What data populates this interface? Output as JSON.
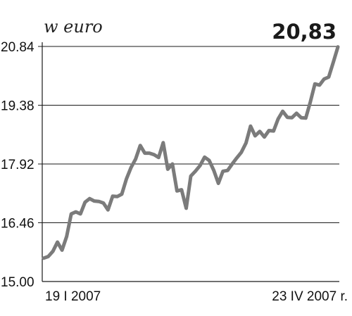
{
  "chart_data": {
    "type": "line",
    "unit_label": "w euro",
    "last_value_label": "20,83",
    "ylim": [
      15.0,
      20.84
    ],
    "y_ticks": [
      15.0,
      16.46,
      17.92,
      19.38,
      20.84
    ],
    "y_tick_labels": [
      "15.00",
      "16.46",
      "17.92",
      "19.38",
      "20.84"
    ],
    "x_start_label": "19 I 2007",
    "x_end_label": "23 IV 2007 r.",
    "grid": true,
    "series": [
      {
        "color": "#7b7b7b",
        "values": [
          15.58,
          15.62,
          15.75,
          15.98,
          15.78,
          16.12,
          16.68,
          16.73,
          16.68,
          16.97,
          17.06,
          17.0,
          16.99,
          16.95,
          16.78,
          17.12,
          17.11,
          17.17,
          17.55,
          17.83,
          18.04,
          18.38,
          18.19,
          18.19,
          18.15,
          18.08,
          18.45,
          17.79,
          17.92,
          17.25,
          17.28,
          16.82,
          17.62,
          17.74,
          17.88,
          18.09,
          18.01,
          17.76,
          17.44,
          17.74,
          17.76,
          17.92,
          18.07,
          18.21,
          18.44,
          18.86,
          18.62,
          18.73,
          18.59,
          18.75,
          18.74,
          19.04,
          19.23,
          19.08,
          19.07,
          19.18,
          19.07,
          19.06,
          19.46,
          19.91,
          19.88,
          20.03,
          20.08,
          20.45,
          20.83
        ]
      }
    ]
  }
}
